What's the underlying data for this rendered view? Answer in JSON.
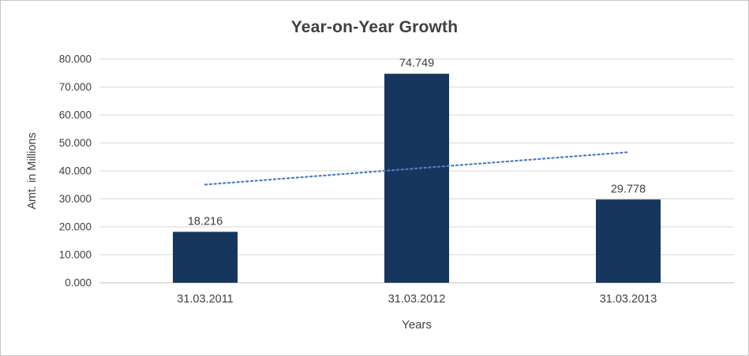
{
  "chart_data": {
    "type": "bar",
    "title": "Year-on-Year Growth",
    "xlabel": "Years",
    "ylabel": "Amt. in Millions",
    "categories": [
      "31.03.2011",
      "31.03.2012",
      "31.03.2013"
    ],
    "values": [
      18.216,
      74.749,
      29.778
    ],
    "value_labels": [
      "18.216",
      "74.749",
      "29.778"
    ],
    "ylim": [
      0,
      80
    ],
    "ytick_interval": 10,
    "ytick_labels": [
      "0.000",
      "10.000",
      "20.000",
      "30.000",
      "40.000",
      "50.000",
      "60.000",
      "70.000",
      "80.000"
    ],
    "grid": true,
    "legend": "none",
    "trendline": {
      "type": "linear",
      "style": "dotted",
      "start": 35.1,
      "end": 46.7
    },
    "colors": {
      "bar": "#17365D",
      "trendline": "#4C7FC2",
      "gridline": "#D9D9D9",
      "axis_line": "#BFBFBF",
      "title_text": "#404040",
      "label_text": "#404040",
      "background": "#FFFFFF",
      "border": "#C6C6C6"
    }
  }
}
